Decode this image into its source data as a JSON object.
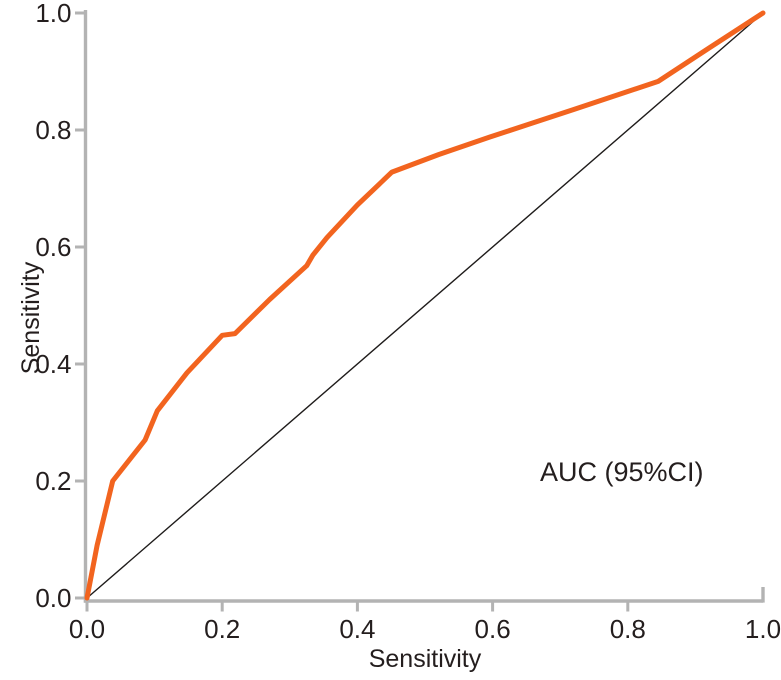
{
  "chart_data": {
    "type": "line",
    "title": "",
    "xlabel": "Sensitivity",
    "ylabel": "Sensitivity",
    "annotation": "AUC (95%CI)",
    "xlim": [
      0.0,
      1.0
    ],
    "ylim": [
      0.0,
      1.0
    ],
    "x_tick_labels": [
      "0.0",
      "0.2",
      "0.4",
      "0.6",
      "0.8",
      "1.0"
    ],
    "x_tick_values": [
      0.0,
      0.2,
      0.4,
      0.6,
      0.8,
      1.0
    ],
    "y_tick_labels": [
      "0.0",
      "0.2",
      "0.4",
      "0.6",
      "0.8",
      "1.0"
    ],
    "y_tick_values": [
      0.0,
      0.2,
      0.4,
      0.6,
      0.8,
      1.0
    ],
    "grid": false,
    "legend": "none",
    "series": [
      {
        "name": "roc-curve",
        "color": "#f2641f",
        "stroke_width": 5,
        "points": [
          [
            0.0,
            0.0
          ],
          [
            0.015,
            0.09
          ],
          [
            0.038,
            0.2
          ],
          [
            0.086,
            0.27
          ],
          [
            0.104,
            0.32
          ],
          [
            0.148,
            0.385
          ],
          [
            0.2,
            0.449
          ],
          [
            0.219,
            0.452
          ],
          [
            0.27,
            0.51
          ],
          [
            0.325,
            0.568
          ],
          [
            0.334,
            0.586
          ],
          [
            0.355,
            0.616
          ],
          [
            0.4,
            0.672
          ],
          [
            0.451,
            0.728
          ],
          [
            0.52,
            0.758
          ],
          [
            0.596,
            0.788
          ],
          [
            0.72,
            0.835
          ],
          [
            0.845,
            0.883
          ],
          [
            0.92,
            0.94
          ],
          [
            1.0,
            1.0
          ]
        ]
      },
      {
        "name": "reference-diagonal",
        "color": "#1f1c1b",
        "stroke_width": 1.4,
        "points": [
          [
            0.0,
            0.0
          ],
          [
            1.0,
            1.0
          ]
        ]
      }
    ],
    "colors": {
      "axis": "#b3b3b3",
      "tick": "#b3b3b3",
      "text": "#241e1e",
      "background": "#ffffff"
    }
  }
}
